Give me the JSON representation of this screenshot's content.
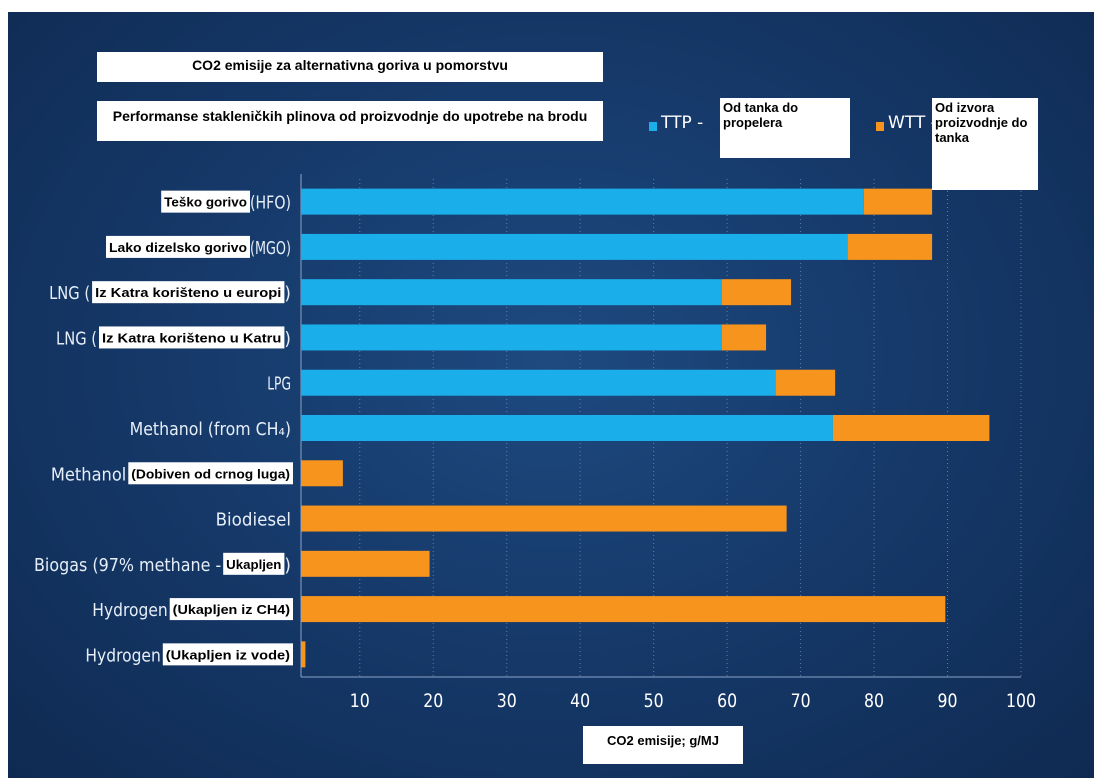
{
  "chart_data": {
    "type": "bar",
    "orientation": "horizontal",
    "stacked": true,
    "title": "CO2 emisije za alternativna goriva u pomorstvu",
    "subtitle": "Performanse stakleničkih plinova od proizvodnje do upotrebe na brodu",
    "xlabel": "CO2 emisije; g/MJ",
    "xlim": [
      2,
      100
    ],
    "xticks": [
      10,
      20,
      30,
      40,
      50,
      60,
      70,
      80,
      90,
      100
    ],
    "grid": "vertical dotted",
    "legend_position": "top-right",
    "categories": [
      {
        "prefix": "",
        "label": "Teško gorivo",
        "suffix": "(HFO)"
      },
      {
        "prefix": "",
        "label": "Lako dizelsko gorivo",
        "suffix": "(MGO)"
      },
      {
        "prefix": "LNG (",
        "label": "Iz Katra korišteno u europi",
        "suffix": ")"
      },
      {
        "prefix": "LNG (",
        "label": "Iz Katra korišteno u Katru",
        "suffix": ")"
      },
      {
        "prefix": "LPG",
        "label": "",
        "suffix": ""
      },
      {
        "prefix": "Methanol (from CH₄)",
        "label": "",
        "suffix": ""
      },
      {
        "prefix": "Methanol ",
        "label": "(Dobiven od crnog luga)",
        "suffix": ""
      },
      {
        "prefix": "Biodiesel",
        "label": "",
        "suffix": ""
      },
      {
        "prefix": "Biogas (97% methane - ",
        "label": "Ukapljen",
        "suffix": ")"
      },
      {
        "prefix": "Hydrogen ",
        "label": "(Ukapljen iz CH4)",
        "suffix": ""
      },
      {
        "prefix": "Hydrogen ",
        "label": "(Ukapljen iz vode)",
        "suffix": ""
      }
    ],
    "series": [
      {
        "name": "TTP",
        "legend_label": "Od tanka do propelera",
        "color": "#1aaeea",
        "values": [
          76.6,
          74.4,
          57.3,
          57.3,
          64.6,
          72.4,
          0,
          0,
          0,
          0,
          0
        ]
      },
      {
        "name": "WTT",
        "legend_label": "Od izvora proizvodnje do tanka",
        "color": "#f7941d",
        "values": [
          9.3,
          11.5,
          9.4,
          6.0,
          8.1,
          21.3,
          5.7,
          66.1,
          17.5,
          87.7,
          0.6
        ]
      }
    ],
    "colors": {
      "background": "#163a6b",
      "ttp": "#1aaeea",
      "wtt": "#f7941d",
      "text": "#ffffff"
    }
  }
}
